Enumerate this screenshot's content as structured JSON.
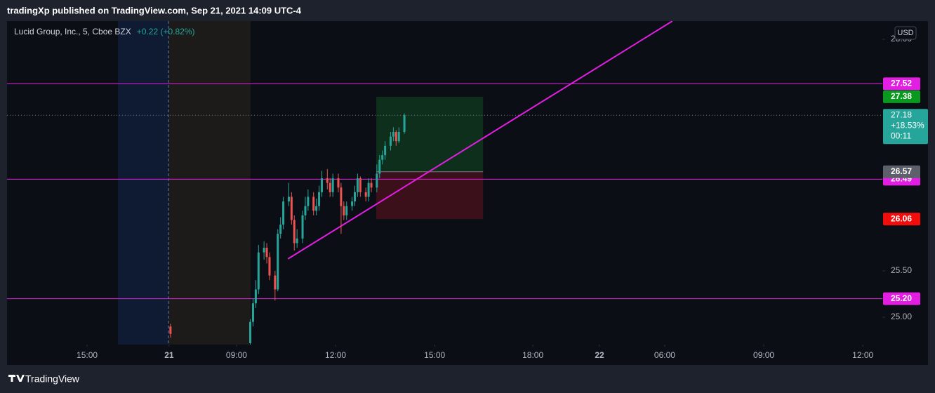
{
  "header": "tradingXp published on TradingView.com, Sep 21, 2021 14:09 UTC-4",
  "footer": "TradingView",
  "chart_data": {
    "type": "candlestick",
    "title": "Lucid Group, Inc., 5, Cboe BZX",
    "change": "+0.22 (+0.82%)",
    "currency": "USD",
    "xlim": [
      -119.4,
      198.7
    ],
    "xticks": [
      {
        "value": -90.3,
        "label": "15:00"
      },
      {
        "value": -60.5,
        "label": "21"
      },
      {
        "value": -36,
        "label": "09:00"
      },
      {
        "value": 0,
        "label": "12:00"
      },
      {
        "value": 36,
        "label": "15:00"
      },
      {
        "value": 71.7,
        "label": "18:00"
      },
      {
        "value": 95.9,
        "label": "22"
      },
      {
        "value": 119.6,
        "label": "06:00"
      },
      {
        "value": 155.6,
        "label": "09:00"
      },
      {
        "value": 191.6,
        "label": "12:00"
      }
    ],
    "ylim": [
      24.705,
      28.197
    ],
    "yticks": [
      {
        "value": 25,
        "label": "25.00"
      },
      {
        "value": 25.5,
        "label": "25.50"
      },
      {
        "value": 28,
        "label": "28.00"
      }
    ],
    "sessions": [
      {
        "from": -79.1,
        "to": -60.7,
        "color": "#0f1a33"
      },
      {
        "from": -60.7,
        "to": -30.9,
        "color": "#1c1b1a"
      }
    ],
    "up_color": "#26a69a",
    "down_color": "#ef5350",
    "x": [
      -60,
      -31,
      -30,
      -29,
      -28,
      -26,
      -25,
      -24,
      -22,
      -21,
      -20,
      -19,
      -17,
      -16,
      -15,
      -14,
      -12,
      -11,
      -10,
      -8,
      -7,
      -6,
      -5,
      -3,
      -2,
      -1,
      1,
      2,
      3,
      4,
      6,
      7,
      8,
      9,
      11,
      12,
      13,
      15,
      16,
      17,
      18,
      20,
      21,
      22,
      23,
      25
    ],
    "open": [
      24.9,
      24.72,
      24.95,
      25.15,
      25.3,
      25.7,
      25.75,
      25.65,
      25.45,
      25.3,
      25.9,
      26.0,
      26.25,
      26.3,
      26.05,
      25.8,
      25.85,
      26.1,
      26.2,
      26.3,
      26.15,
      26.2,
      26.35,
      26.5,
      26.45,
      26.35,
      26.5,
      26.4,
      26.2,
      26.1,
      26.2,
      26.25,
      26.35,
      26.5,
      26.35,
      26.3,
      26.45,
      26.4,
      26.55,
      26.7,
      26.75,
      26.85,
      26.95,
      27.0,
      26.9,
      27.0
    ],
    "high": [
      24.93,
      24.98,
      25.2,
      25.4,
      25.78,
      25.82,
      25.8,
      25.7,
      25.5,
      25.95,
      26.08,
      26.3,
      26.45,
      26.35,
      26.1,
      25.95,
      26.15,
      26.3,
      26.38,
      26.35,
      26.28,
      26.42,
      26.58,
      26.6,
      26.5,
      26.55,
      26.55,
      26.45,
      26.25,
      26.25,
      26.3,
      26.42,
      26.55,
      26.52,
      26.4,
      26.5,
      26.5,
      26.65,
      26.75,
      26.8,
      26.9,
      27.0,
      27.05,
      27.02,
      27.05,
      27.2
    ],
    "low": [
      24.78,
      24.7,
      24.9,
      25.1,
      25.25,
      25.62,
      25.58,
      25.4,
      25.18,
      25.28,
      25.85,
      25.95,
      26.2,
      26.0,
      25.72,
      25.75,
      25.8,
      26.05,
      26.15,
      26.1,
      26.1,
      26.15,
      26.3,
      26.38,
      26.3,
      26.3,
      26.35,
      25.9,
      26.05,
      26.05,
      26.15,
      26.2,
      26.3,
      26.3,
      26.25,
      26.25,
      26.35,
      26.35,
      26.5,
      26.65,
      26.7,
      26.8,
      26.9,
      26.85,
      26.88,
      26.98
    ],
    "close": [
      24.82,
      24.95,
      25.15,
      25.3,
      25.7,
      25.75,
      25.65,
      25.45,
      25.3,
      25.9,
      26.0,
      26.25,
      26.3,
      26.05,
      25.8,
      25.85,
      26.1,
      26.2,
      26.3,
      26.15,
      26.2,
      26.35,
      26.5,
      26.45,
      26.35,
      26.5,
      26.4,
      26.2,
      26.1,
      26.2,
      26.25,
      26.35,
      26.5,
      26.35,
      26.3,
      26.45,
      26.4,
      26.55,
      26.7,
      26.75,
      26.85,
      26.95,
      27.0,
      26.9,
      27.0,
      27.18
    ],
    "hlines": [
      {
        "value": 27.52,
        "label": "27.52"
      },
      {
        "value": 26.49,
        "label": "26.49"
      },
      {
        "value": 25.2,
        "label": "25.20"
      }
    ],
    "hline_color": "#e21ee2",
    "trendline": {
      "x": [
        -17.3,
        122.4
      ],
      "y": [
        25.63,
        28.197
      ],
      "color": "#e21ee2"
    },
    "position": {
      "from": 14.8,
      "to": 53.6,
      "entry": {
        "value": 26.57,
        "label": "26.57"
      },
      "target": {
        "value": 27.38,
        "label": "27.38"
      },
      "stop": {
        "value": 26.06,
        "label": "26.06"
      }
    },
    "last_price": {
      "value": 27.18,
      "label": "27.18",
      "change": "+18.53%",
      "countdown": "00:11"
    }
  }
}
